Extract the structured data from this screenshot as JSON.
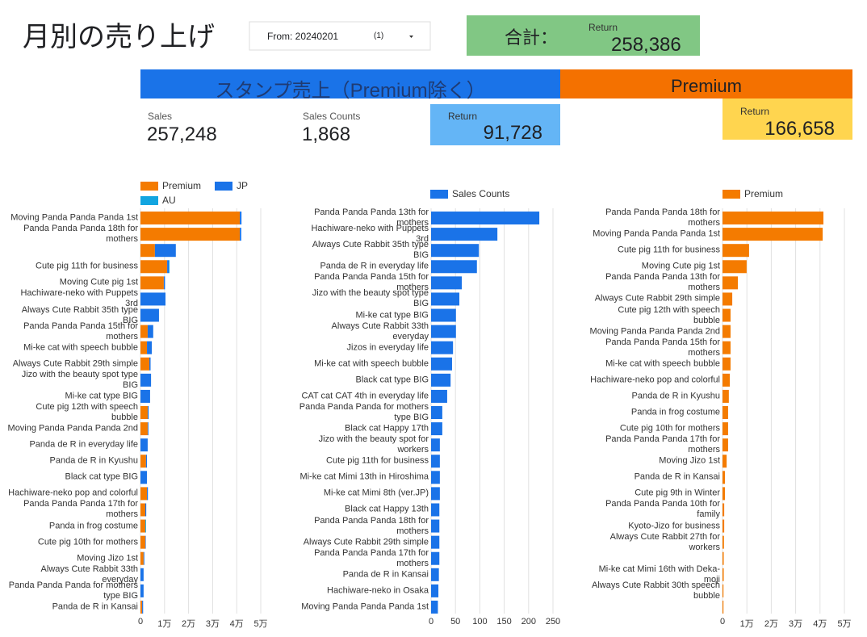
{
  "header": {
    "title": "月別の売り上げ",
    "filter": "From: 20240201",
    "filter_count": "(1)",
    "total_label": "合計：",
    "total_caption": "Return",
    "total_value": "258,386"
  },
  "sections": {
    "stamp": "スタンプ売上（Premium除く）",
    "premium": "Premium"
  },
  "scorecards": {
    "sales_label": "Sales",
    "sales_value": "257,248",
    "counts_label": "Sales Counts",
    "counts_value": "1,868",
    "stamp_return_label": "Return",
    "stamp_return_value": "91,728",
    "premium_return_label": "Return",
    "premium_return_value": "166,658"
  },
  "chart_data": [
    {
      "type": "bar",
      "horizontal": true,
      "stacked": true,
      "grid": true,
      "categories": [
        "Moving Panda Panda Panda 1st",
        "Panda Panda Panda 18th for mothers",
        null,
        "Cute pig 11th for business",
        "Moving Cute pig 1st",
        "Hachiware-neko with Puppets 3rd",
        "Always Cute Rabbit 35th type BIG",
        "Panda Panda Panda 15th for mothers",
        "Mi-ke cat with speech bubble",
        "Always Cute Rabbit 29th simple",
        "Jizo with the beauty spot type BIG",
        "Mi-ke cat type BIG",
        "Cute pig 12th with speech bubble",
        "Moving Panda Panda Panda 2nd",
        "Panda de R in everyday life",
        "Panda de R in Kyushu",
        "Black cat type BIG",
        "Hachiware-neko pop and colorful",
        "Panda Panda Panda 17th for mothers",
        "Panda in frog costume",
        "Cute pig 10th for mothers",
        "Moving Jizo 1st",
        "Always Cute Rabbit 33th everyday",
        "Panda Panda Panda for mothers type BIG",
        "Panda de R in Kansai"
      ],
      "series": [
        {
          "name": "Premium",
          "color": "#f47b00",
          "values": [
            41300,
            41300,
            6000,
            11100,
            9700,
            0,
            0,
            3000,
            2700,
            3700,
            0,
            0,
            3000,
            3000,
            0,
            2300,
            0,
            2700,
            2000,
            2000,
            2000,
            1300,
            0,
            0,
            700
          ]
        },
        {
          "name": "JP",
          "color": "#1a73e8",
          "values": [
            700,
            600,
            8700,
            700,
            500,
            10400,
            7700,
            2300,
            2000,
            500,
            4400,
            4000,
            400,
            300,
            3000,
            400,
            2700,
            400,
            400,
            0,
            200,
            300,
            1300,
            1300,
            400
          ]
        },
        {
          "name": "AU",
          "color": "#12a5e0",
          "values": [
            0,
            0,
            0,
            300,
            0,
            0,
            0,
            0,
            0,
            0,
            0,
            0,
            0,
            0,
            0,
            0,
            0,
            0,
            0,
            300,
            0,
            0,
            0,
            0,
            0
          ]
        }
      ],
      "xlim": [
        0,
        50000
      ],
      "xticks": [
        0,
        {
          "value": 10000,
          "label": "1万"
        },
        {
          "value": 20000,
          "label": "2万"
        },
        {
          "value": 30000,
          "label": "3万"
        },
        {
          "value": 40000,
          "label": "4万"
        },
        {
          "value": 50000,
          "label": "5万"
        }
      ]
    },
    {
      "type": "bar",
      "horizontal": true,
      "stacked": false,
      "grid": true,
      "categories": [
        "Panda Panda Panda 13th for mothers",
        "Hachiware-neko with Puppets 3rd",
        "Always Cute Rabbit 35th type BIG",
        "Panda de R in everyday life",
        "Panda Panda Panda 15th for mothers",
        "Jizo with the beauty spot type BIG",
        "Mi-ke cat type BIG",
        "Always Cute Rabbit 33th everyday",
        "Jizos in everyday life",
        "Mi-ke cat with speech bubble",
        "Black cat type BIG",
        "CAT cat CAT 4th in everyday life",
        "Panda Panda Panda for mothers type BIG",
        "Black cat Happy 17th",
        "Jizo with the beauty spot for workers",
        "Cute pig 11th for business",
        "Mi-ke cat Mimi 13th in Hiroshima",
        "Mi-ke cat Mimi 8th (ver.JP)",
        "Black cat Happy 13th",
        "Panda Panda Panda 18th for mothers",
        "Always Cute Rabbit 29th simple",
        "Panda Panda Panda 17th for mothers",
        "Panda de R in Kansai",
        "Hachiware-neko in Osaka",
        "Moving Panda Panda Panda 1st"
      ],
      "series": [
        {
          "name": "Sales Counts",
          "color": "#1a73e8",
          "values": [
            222,
            136,
            98,
            94,
            63,
            58,
            51,
            51,
            45,
            43,
            40,
            33,
            23,
            23,
            18,
            18,
            18,
            18,
            17,
            17,
            17,
            17,
            16,
            15,
            14
          ]
        }
      ],
      "xlim": [
        0,
        250
      ],
      "xticks": [
        0,
        50,
        100,
        150,
        200,
        250
      ]
    },
    {
      "type": "bar",
      "horizontal": true,
      "stacked": false,
      "grid": true,
      "categories": [
        "Panda Panda Panda 18th for mothers",
        "Moving Panda Panda Panda 1st",
        "Cute pig 11th for business",
        "Moving Cute pig 1st",
        "Panda Panda Panda 13th for mothers",
        "Always Cute Rabbit 29th simple",
        "Cute pig 12th with speech bubble",
        "Moving Panda Panda Panda 2nd",
        "Panda Panda Panda 15th for mothers",
        "Mi-ke cat with speech bubble",
        "Hachiware-neko pop and colorful",
        "Panda de R in Kyushu",
        "Panda in frog costume",
        "Cute pig 10th for mothers",
        "Panda Panda Panda 17th for mothers",
        "Moving Jizo 1st",
        "Panda de R in Kansai",
        "Cute pig 9th in Winter",
        "Panda Panda Panda 10th for family",
        "Kyoto-Jizo for business",
        "Always Cute Rabbit 27th for workers",
        null,
        "Mi-ke cat Mimi 16th with Deka-moji",
        "Always Cute Rabbit 30th speech bubble",
        null
      ],
      "series": [
        {
          "name": "Premium",
          "color": "#f47b00",
          "values": [
            41400,
            41100,
            10900,
            9900,
            6300,
            4000,
            3300,
            3300,
            3300,
            3300,
            3000,
            2600,
            2300,
            2300,
            2300,
            1700,
            1000,
            1000,
            700,
            700,
            600,
            500,
            500,
            400,
            400
          ]
        }
      ],
      "xlim": [
        0,
        50000
      ],
      "xticks": [
        0,
        {
          "value": 10000,
          "label": "1万"
        },
        {
          "value": 20000,
          "label": "2万"
        },
        {
          "value": 30000,
          "label": "3万"
        },
        {
          "value": 40000,
          "label": "4万"
        },
        {
          "value": 50000,
          "label": "5万"
        }
      ]
    }
  ]
}
